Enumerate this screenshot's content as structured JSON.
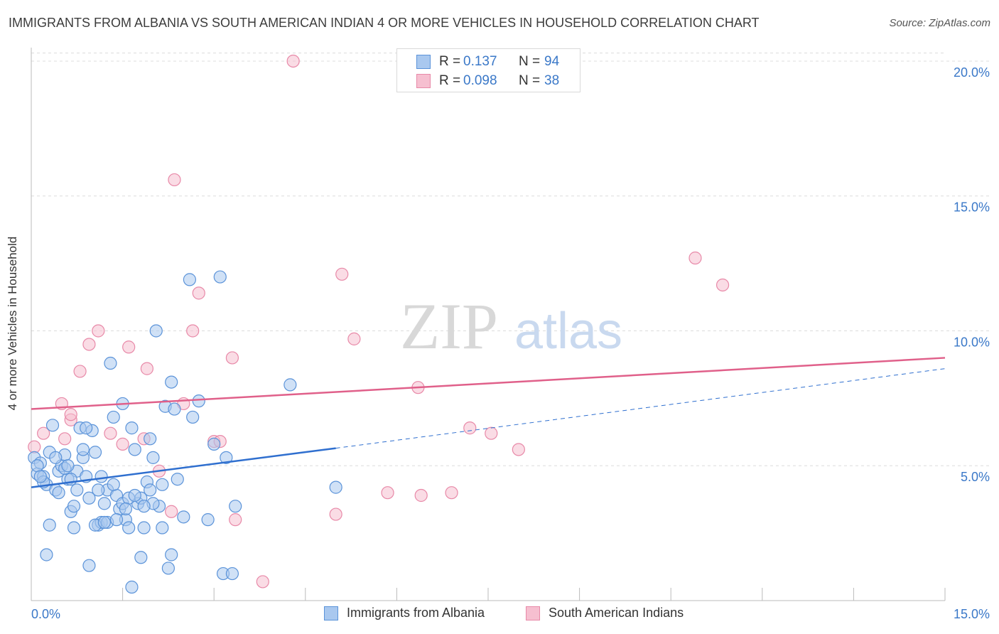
{
  "title": "IMMIGRANTS FROM ALBANIA VS SOUTH AMERICAN INDIAN 4 OR MORE VEHICLES IN HOUSEHOLD CORRELATION CHART",
  "source": "Source: ZipAtlas.com",
  "watermark": {
    "zip": "ZIP",
    "atlas": "atlas"
  },
  "legend": {
    "rows": [
      {
        "r_label": "R =",
        "r_value": "0.137",
        "n_label": "N =",
        "n_value": "94"
      },
      {
        "r_label": "R =",
        "r_value": "0.098",
        "n_label": "N =",
        "n_value": "38"
      }
    ]
  },
  "bottom_legend": [
    "Immigrants from Albania",
    "South American Indians"
  ],
  "colors": {
    "blue_fill": "#a9c8ef",
    "blue_stroke": "#5b93d9",
    "blue_line": "#2f6fcf",
    "pink_fill": "#f6bfd0",
    "pink_stroke": "#e889a8",
    "pink_line": "#e0608a",
    "tick_label": "#3a78c8",
    "grid": "#dcdcdc"
  },
  "chart_data": {
    "type": "scatter",
    "title": "IMMIGRANTS FROM ALBANIA VS SOUTH AMERICAN INDIAN 4 OR MORE VEHICLES IN HOUSEHOLD CORRELATION CHART",
    "xlabel": "",
    "ylabel": "4 or more Vehicles in Household",
    "xlim": [
      0,
      15
    ],
    "ylim": [
      0,
      20.5
    ],
    "x_tick_labels": [
      "0.0%",
      "15.0%"
    ],
    "y_ticks": [
      5,
      10,
      15,
      20
    ],
    "y_tick_labels": [
      "5.0%",
      "10.0%",
      "15.0%",
      "20.0%"
    ],
    "grid": true,
    "series": [
      {
        "name": "Immigrants from Albania",
        "color": "blue",
        "r": 0.137,
        "n": 94,
        "trend": {
          "x": [
            0,
            5.0
          ],
          "y": [
            4.2,
            5.65
          ],
          "dashed_to": [
            15,
            8.6
          ]
        },
        "points": [
          [
            0.05,
            5.3
          ],
          [
            0.1,
            4.7
          ],
          [
            0.15,
            5.1
          ],
          [
            0.2,
            4.6
          ],
          [
            0.25,
            4.3
          ],
          [
            0.3,
            5.5
          ],
          [
            0.35,
            6.5
          ],
          [
            0.4,
            4.1
          ],
          [
            0.45,
            4.8
          ],
          [
            0.5,
            5.0
          ],
          [
            0.55,
            5.4
          ],
          [
            0.6,
            4.5
          ],
          [
            0.65,
            3.3
          ],
          [
            0.7,
            3.5
          ],
          [
            0.75,
            4.8
          ],
          [
            0.8,
            6.4
          ],
          [
            0.85,
            5.3
          ],
          [
            0.9,
            4.6
          ],
          [
            0.95,
            3.8
          ],
          [
            1.0,
            6.3
          ],
          [
            1.05,
            5.5
          ],
          [
            1.1,
            2.8
          ],
          [
            1.15,
            4.6
          ],
          [
            1.2,
            3.6
          ],
          [
            1.25,
            4.1
          ],
          [
            1.3,
            8.8
          ],
          [
            1.35,
            6.8
          ],
          [
            1.4,
            3.9
          ],
          [
            1.45,
            3.4
          ],
          [
            1.5,
            7.3
          ],
          [
            1.55,
            3.0
          ],
          [
            1.6,
            2.7
          ],
          [
            1.65,
            6.4
          ],
          [
            1.7,
            5.6
          ],
          [
            1.75,
            3.6
          ],
          [
            1.8,
            1.6
          ],
          [
            1.85,
            2.7
          ],
          [
            1.9,
            4.4
          ],
          [
            1.95,
            6.0
          ],
          [
            2.0,
            5.3
          ],
          [
            2.05,
            10.0
          ],
          [
            2.1,
            3.5
          ],
          [
            2.15,
            4.3
          ],
          [
            2.2,
            7.2
          ],
          [
            2.25,
            1.2
          ],
          [
            2.3,
            8.1
          ],
          [
            2.35,
            7.1
          ],
          [
            2.4,
            4.5
          ],
          [
            2.5,
            3.1
          ],
          [
            2.6,
            11.9
          ],
          [
            2.65,
            6.8
          ],
          [
            2.75,
            7.4
          ],
          [
            2.9,
            3.0
          ],
          [
            3.0,
            5.8
          ],
          [
            3.1,
            12.0
          ],
          [
            3.15,
            1.0
          ],
          [
            3.2,
            5.3
          ],
          [
            3.35,
            3.5
          ],
          [
            4.25,
            8.0
          ],
          [
            5.0,
            4.2
          ],
          [
            0.25,
            1.7
          ],
          [
            0.3,
            2.8
          ],
          [
            0.7,
            2.7
          ],
          [
            0.95,
            1.3
          ],
          [
            1.15,
            2.9
          ],
          [
            1.25,
            2.9
          ],
          [
            1.65,
            0.5
          ],
          [
            1.8,
            3.8
          ],
          [
            1.95,
            4.1
          ],
          [
            2.3,
            1.7
          ],
          [
            0.1,
            5.0
          ],
          [
            0.2,
            4.4
          ],
          [
            0.45,
            4.0
          ],
          [
            0.55,
            4.9
          ],
          [
            0.6,
            5.0
          ],
          [
            0.85,
            5.6
          ],
          [
            1.05,
            2.8
          ],
          [
            1.35,
            4.3
          ],
          [
            1.5,
            3.6
          ],
          [
            1.6,
            3.8
          ],
          [
            0.15,
            4.6
          ],
          [
            0.4,
            5.3
          ],
          [
            0.9,
            6.4
          ],
          [
            1.1,
            4.1
          ],
          [
            1.4,
            3.0
          ],
          [
            1.55,
            3.4
          ],
          [
            1.7,
            3.9
          ],
          [
            2.0,
            3.6
          ],
          [
            2.15,
            2.7
          ],
          [
            0.65,
            4.5
          ],
          [
            0.75,
            4.1
          ],
          [
            1.2,
            2.9
          ],
          [
            1.85,
            3.5
          ],
          [
            3.3,
            1.0
          ]
        ]
      },
      {
        "name": "South American Indians",
        "color": "pink",
        "r": 0.098,
        "n": 38,
        "trend": {
          "x": [
            0,
            15
          ],
          "y": [
            7.1,
            9.0
          ]
        },
        "points": [
          [
            0.05,
            5.7
          ],
          [
            0.2,
            6.2
          ],
          [
            0.5,
            7.3
          ],
          [
            0.65,
            6.7
          ],
          [
            0.65,
            6.9
          ],
          [
            0.8,
            8.5
          ],
          [
            0.95,
            9.5
          ],
          [
            1.1,
            10.0
          ],
          [
            1.3,
            6.2
          ],
          [
            1.5,
            5.8
          ],
          [
            1.6,
            9.4
          ],
          [
            1.85,
            6.0
          ],
          [
            1.9,
            8.6
          ],
          [
            2.1,
            4.8
          ],
          [
            2.3,
            3.3
          ],
          [
            2.35,
            15.6
          ],
          [
            2.5,
            7.3
          ],
          [
            2.65,
            10.0
          ],
          [
            2.75,
            11.4
          ],
          [
            3.0,
            5.9
          ],
          [
            3.1,
            5.9
          ],
          [
            3.3,
            9.0
          ],
          [
            3.35,
            3.0
          ],
          [
            3.8,
            0.7
          ],
          [
            4.3,
            20.0
          ],
          [
            5.0,
            3.2
          ],
          [
            5.1,
            12.1
          ],
          [
            5.3,
            9.7
          ],
          [
            5.85,
            4.0
          ],
          [
            6.35,
            7.9
          ],
          [
            6.4,
            3.9
          ],
          [
            6.9,
            4.0
          ],
          [
            7.2,
            6.4
          ],
          [
            7.55,
            6.2
          ],
          [
            8.0,
            5.6
          ],
          [
            10.9,
            12.7
          ],
          [
            11.35,
            11.7
          ],
          [
            0.55,
            6.0
          ]
        ]
      }
    ]
  }
}
